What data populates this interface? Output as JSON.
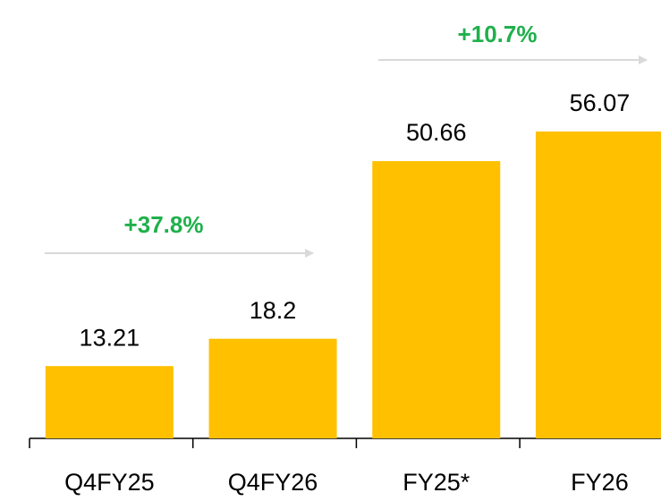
{
  "chart_data": {
    "type": "bar",
    "categories": [
      "Q4FY25",
      "Q4FY26",
      "FY25*",
      "FY26"
    ],
    "values": [
      13.21,
      18.2,
      50.66,
      56.07
    ],
    "color": "#ffc000",
    "annotations": [
      "+37.8%",
      "+10.7%"
    ]
  }
}
